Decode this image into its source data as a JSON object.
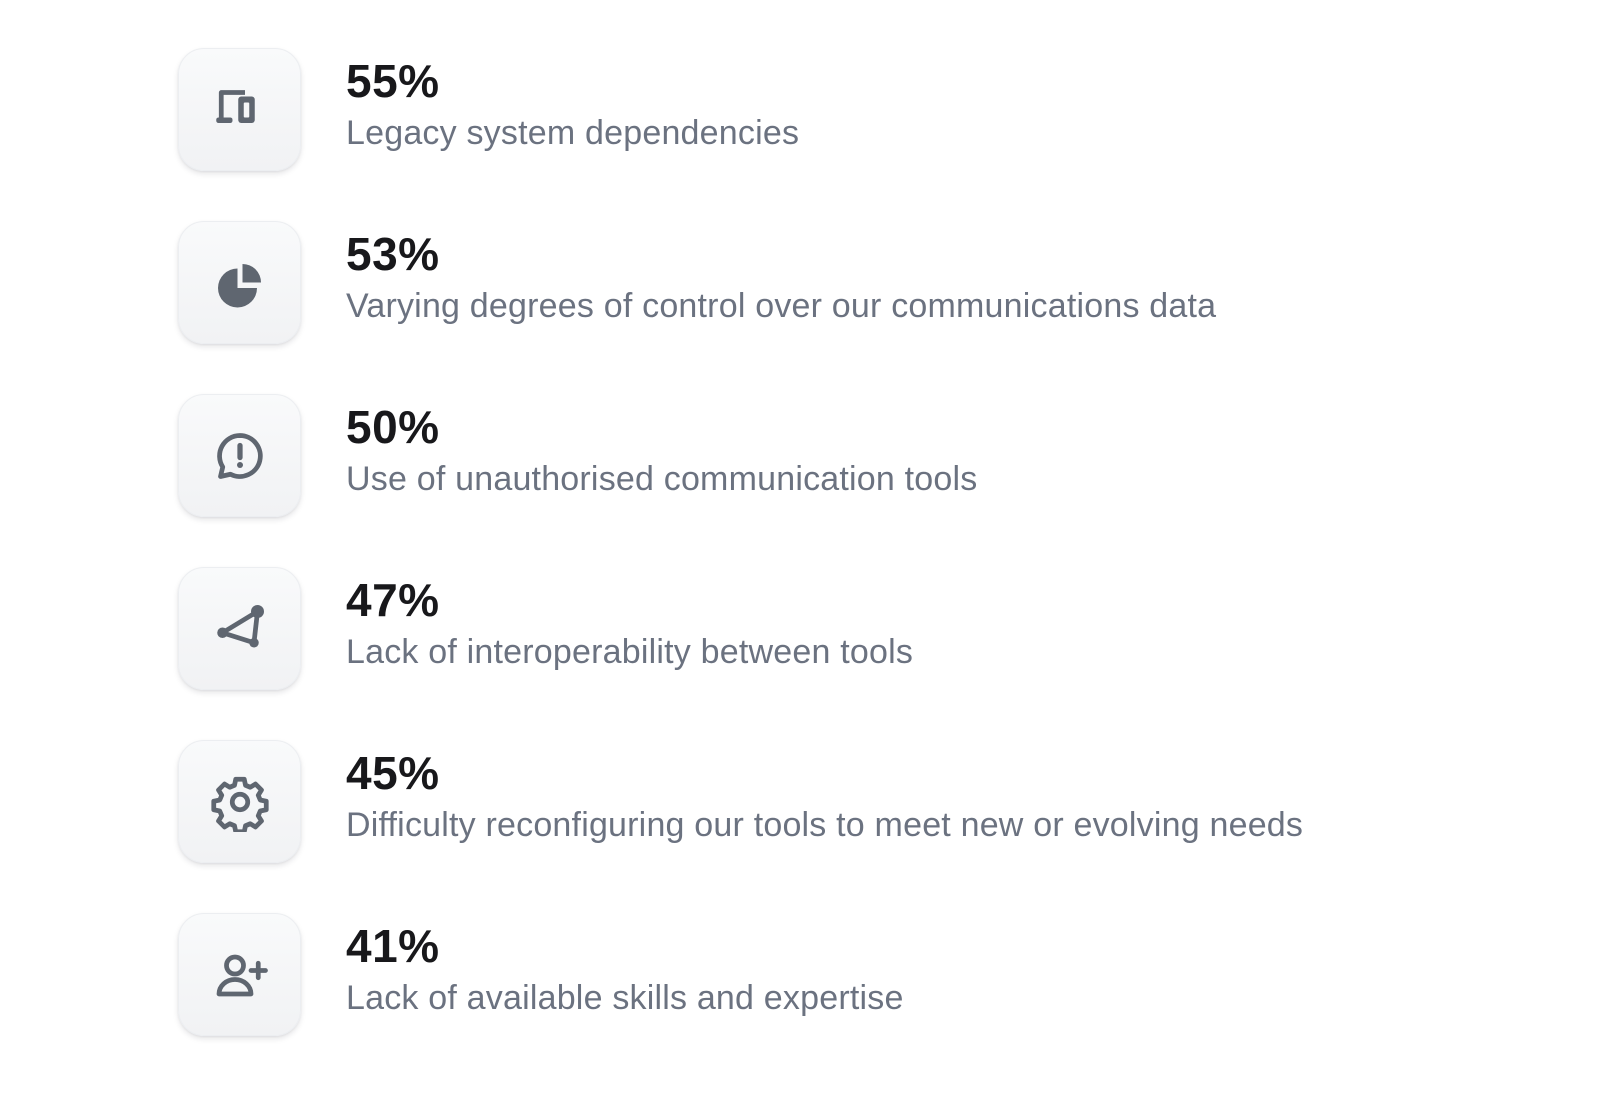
{
  "stats": [
    {
      "value": "55%",
      "label": "Legacy system dependencies",
      "icon": "devices-icon"
    },
    {
      "value": "53%",
      "label": "Varying degrees of control over our communications data",
      "icon": "pie-chart-icon"
    },
    {
      "value": "50%",
      "label": "Use of unauthorised communication tools",
      "icon": "chat-alert-icon"
    },
    {
      "value": "47%",
      "label": "Lack of interoperability between tools",
      "icon": "network-icon"
    },
    {
      "value": "45%",
      "label": "Difficulty reconfiguring our tools to meet new or evolving needs",
      "icon": "gear-icon"
    },
    {
      "value": "41%",
      "label": "Lack of available skills and expertise",
      "icon": "user-add-icon"
    }
  ],
  "colors": {
    "icon": "#5f6670",
    "value_text": "#18181b",
    "label_text": "#6b7280",
    "tile_background": "#f3f4f6"
  }
}
